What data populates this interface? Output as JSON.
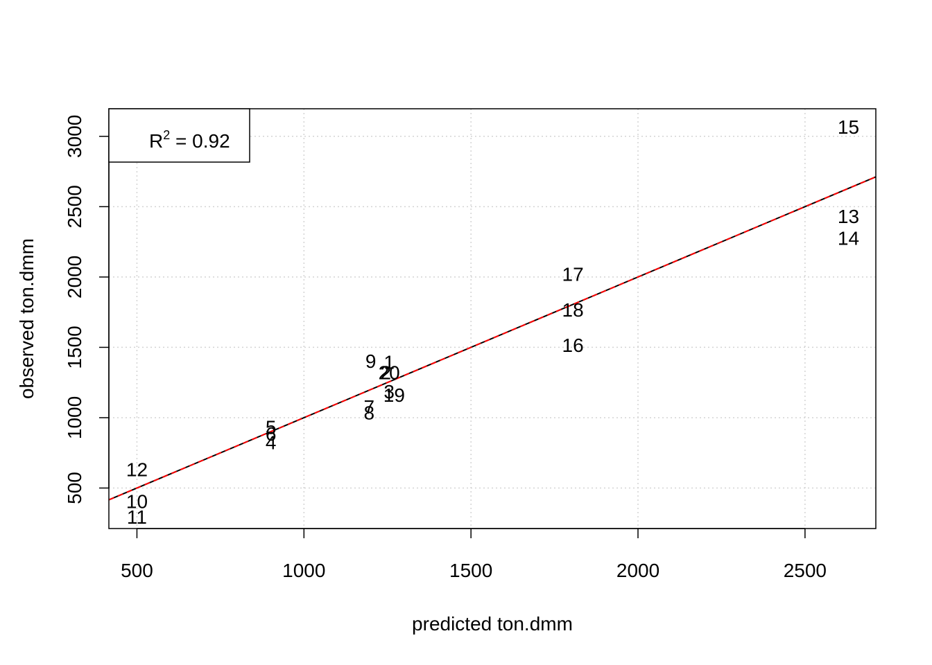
{
  "chart_data": {
    "type": "scatter",
    "xlabel": "predicted ton.dmm",
    "ylabel": "observed ton.dmm",
    "xlim": [
      416,
      2712
    ],
    "ylim": [
      212,
      3196
    ],
    "xticks": [
      500,
      1000,
      1500,
      2000,
      2500
    ],
    "yticks": [
      500,
      1000,
      1500,
      2000,
      2500,
      3000
    ],
    "grid": true,
    "grid_color": "#d3d3d3",
    "point_marker": "label",
    "points": [
      {
        "label": "1",
        "x": 1255,
        "y": 1395
      },
      {
        "label": "2",
        "x": 1245,
        "y": 1320
      },
      {
        "label": "3",
        "x": 1255,
        "y": 1185
      },
      {
        "label": "4",
        "x": 901,
        "y": 822
      },
      {
        "label": "5",
        "x": 901,
        "y": 930
      },
      {
        "label": "6",
        "x": 901,
        "y": 885
      },
      {
        "label": "7",
        "x": 1195,
        "y": 1075
      },
      {
        "label": "8",
        "x": 1195,
        "y": 1035
      },
      {
        "label": "9",
        "x": 1200,
        "y": 1400
      },
      {
        "label": "10",
        "x": 500,
        "y": 405
      },
      {
        "label": "11",
        "x": 500,
        "y": 293
      },
      {
        "label": "12",
        "x": 500,
        "y": 630
      },
      {
        "label": "13",
        "x": 2630,
        "y": 2430
      },
      {
        "label": "14",
        "x": 2630,
        "y": 2275
      },
      {
        "label": "15",
        "x": 2630,
        "y": 3065
      },
      {
        "label": "16",
        "x": 1805,
        "y": 1515
      },
      {
        "label": "17",
        "x": 1805,
        "y": 2020
      },
      {
        "label": "18",
        "x": 1805,
        "y": 1765
      },
      {
        "label": "19",
        "x": 1270,
        "y": 1160
      },
      {
        "label": "20",
        "x": 1255,
        "y": 1320
      }
    ],
    "lines": [
      {
        "kind": "fit",
        "color": "#000000",
        "style": "solid",
        "intercept": 0,
        "slope": 1
      },
      {
        "kind": "identity",
        "color": "#ff0000",
        "style": "dashed",
        "intercept": 0,
        "slope": 1
      }
    ],
    "legend": {
      "position": "top-left",
      "text_prefix": "R",
      "text_sup": "2",
      "text_suffix": " = 0.92"
    }
  }
}
